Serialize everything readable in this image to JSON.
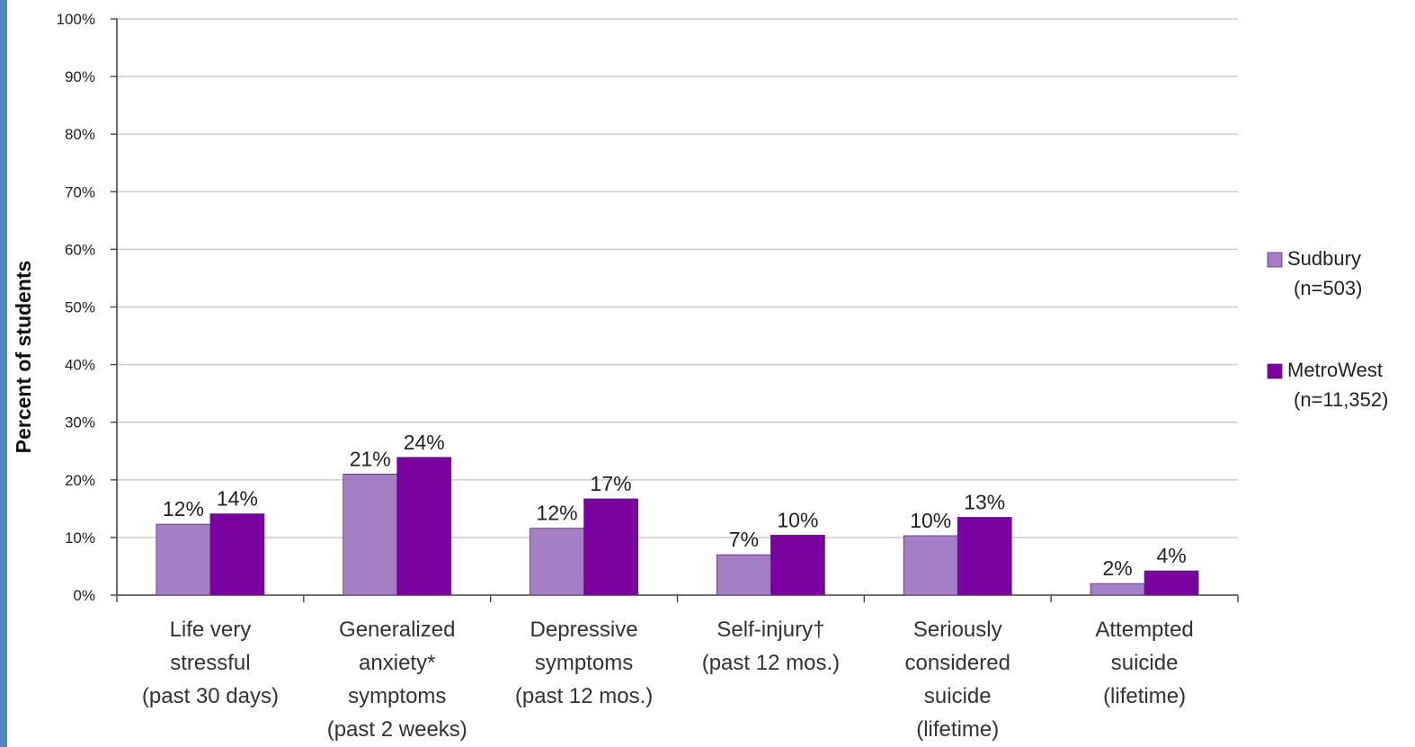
{
  "chart_data": {
    "type": "bar",
    "ylabel": "Percent of students",
    "ylim": [
      0,
      100
    ],
    "yticks": [
      {
        "value": 0,
        "label": "0%"
      },
      {
        "value": 10,
        "label": "10%"
      },
      {
        "value": 20,
        "label": "20%"
      },
      {
        "value": 30,
        "label": "30%"
      },
      {
        "value": 40,
        "label": "40%"
      },
      {
        "value": 50,
        "label": "50%"
      },
      {
        "value": 60,
        "label": "60%"
      },
      {
        "value": 70,
        "label": "70%"
      },
      {
        "value": 80,
        "label": "80%"
      },
      {
        "value": 90,
        "label": "90%"
      },
      {
        "value": 100,
        "label": "100%"
      }
    ],
    "grid": true,
    "legend_position": "right",
    "categories": [
      [
        "Life very",
        "stressful",
        "(past 30 days)"
      ],
      [
        "Generalized",
        "anxiety*",
        "symptoms",
        "(past 2 weeks)"
      ],
      [
        "Depressive",
        "symptoms",
        "(past 12 mos.)"
      ],
      [
        "Self-injury†",
        "(past 12 mos.)"
      ],
      [
        "Seriously",
        "considered",
        "suicide",
        "(lifetime)"
      ],
      [
        "Attempted",
        "suicide",
        "(lifetime)"
      ]
    ],
    "series": [
      {
        "name": [
          "Sudbury",
          "(n=503)"
        ],
        "color": "#a57fc6",
        "values": [
          12.3,
          21,
          11.6,
          7,
          10.3,
          2
        ],
        "labels": [
          "12%",
          "21%",
          "12%",
          "7%",
          "10%",
          "2%"
        ]
      },
      {
        "name": [
          "MetroWest",
          "(n=11,352)"
        ],
        "color": "#7b00a0",
        "values": [
          14.1,
          23.9,
          16.7,
          10.4,
          13.5,
          4.2
        ],
        "labels": [
          "14%",
          "24%",
          "17%",
          "10%",
          "13%",
          "4%"
        ]
      }
    ]
  }
}
